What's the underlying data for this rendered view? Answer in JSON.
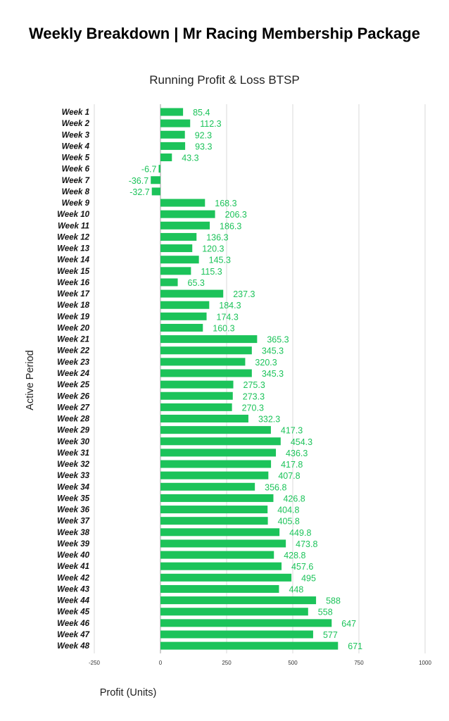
{
  "chart_data": {
    "type": "bar",
    "orientation": "horizontal",
    "title": "Weekly Breakdown | Mr Racing Membership Package",
    "subtitle": "Running Profit & Loss BTSP",
    "xlabel": "Profit (Units)",
    "ylabel": "Active Period",
    "xlim": [
      -250,
      1000
    ],
    "xticks": [
      "-250",
      "0",
      "250",
      "500",
      "750",
      "1000"
    ],
    "grid": "vertical",
    "bar_color": "#1cc35a",
    "label_color": "#1cc35a",
    "categories": [
      "Week 1",
      "Week 2",
      "Week 3",
      "Week 4",
      "Week 5",
      "Week 6",
      "Week 7",
      "Week 8",
      "Week 9",
      "Week 10",
      "Week 11",
      "Week 12",
      "Week 13",
      "Week 14",
      "Week 15",
      "Week 16",
      "Week 17",
      "Week 18",
      "Week 19",
      "Week 20",
      "Week 21",
      "Week 22",
      "Week 23",
      "Week 24",
      "Week 25",
      "Week 26",
      "Week 27",
      "Week 28",
      "Week 29",
      "Week 30",
      "Week 31",
      "Week 32",
      "Week 33",
      "Week 34",
      "Week 35",
      "Week 36",
      "Week 37",
      "Week 38",
      "Week 39",
      "Week 40",
      "Week 41",
      "Week 42",
      "Week 43",
      "Week 44",
      "Week 45",
      "Week 46",
      "Week 47",
      "Week 48"
    ],
    "values": [
      85.4,
      112.3,
      92.3,
      93.3,
      43.3,
      -6.7,
      -36.7,
      -32.7,
      168.3,
      206.3,
      186.3,
      136.3,
      120.3,
      145.3,
      115.3,
      65.3,
      237.3,
      184.3,
      174.3,
      160.3,
      365.3,
      345.3,
      320.3,
      345.3,
      275.3,
      273.3,
      270.3,
      332.3,
      417.3,
      454.3,
      436.3,
      417.8,
      407.8,
      356.8,
      426.8,
      404.8,
      405.8,
      449.8,
      473.8,
      428.8,
      457.6,
      495,
      448,
      588,
      558,
      647,
      577,
      671
    ],
    "value_labels": [
      "85.4",
      "112.3",
      "92.3",
      "93.3",
      "43.3",
      "-6.7",
      "-36.7",
      "-32.7",
      "168.3",
      "206.3",
      "186.3",
      "136.3",
      "120.3",
      "145.3",
      "115.3",
      "65.3",
      "237.3",
      "184.3",
      "174.3",
      "160.3",
      "365.3",
      "345.3",
      "320.3",
      "345.3",
      "275.3",
      "273.3",
      "270.3",
      "332.3",
      "417.3",
      "454.3",
      "436.3",
      "417.8",
      "407.8",
      "356.8",
      "426.8",
      "404.8",
      "405.8",
      "449.8",
      "473.8",
      "428.8",
      "457.6",
      "495",
      "448",
      "588",
      "558",
      "647",
      "577",
      "671"
    ]
  }
}
